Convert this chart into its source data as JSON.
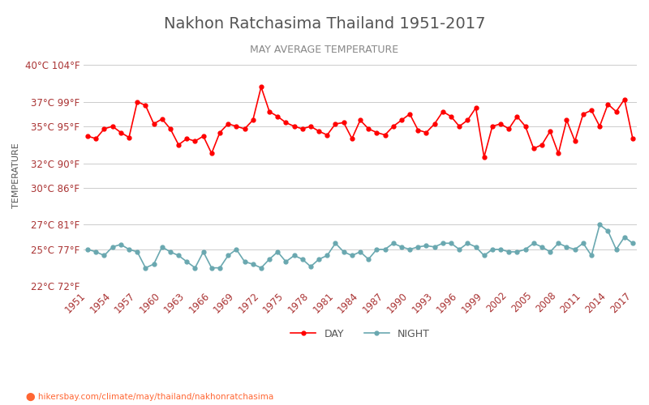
{
  "title": "Nakhon Ratchasima Thailand 1951-2017",
  "subtitle": "MAY AVERAGE TEMPERATURE",
  "ylabel": "TEMPERATURE",
  "url": "hikersbay.com/climate/may/thailand/nakhonratchasima",
  "years": [
    1951,
    1952,
    1953,
    1954,
    1955,
    1956,
    1957,
    1958,
    1959,
    1960,
    1961,
    1962,
    1963,
    1964,
    1965,
    1966,
    1967,
    1968,
    1969,
    1970,
    1971,
    1972,
    1973,
    1974,
    1975,
    1976,
    1977,
    1978,
    1979,
    1980,
    1981,
    1982,
    1983,
    1984,
    1985,
    1986,
    1987,
    1988,
    1989,
    1990,
    1991,
    1992,
    1993,
    1994,
    1995,
    1996,
    1997,
    1998,
    1999,
    2000,
    2001,
    2002,
    2003,
    2004,
    2005,
    2006,
    2007,
    2008,
    2009,
    2010,
    2011,
    2012,
    2013,
    2014,
    2015,
    2016,
    2017
  ],
  "day_temps": [
    34.2,
    34.0,
    34.8,
    35.0,
    34.5,
    34.1,
    37.0,
    36.7,
    35.2,
    35.6,
    34.8,
    33.5,
    34.0,
    33.8,
    34.2,
    32.8,
    34.5,
    35.2,
    35.0,
    34.8,
    35.5,
    38.2,
    36.2,
    35.8,
    35.3,
    35.0,
    34.8,
    35.0,
    34.6,
    34.3,
    35.2,
    35.3,
    34.0,
    35.5,
    34.8,
    34.5,
    34.3,
    35.0,
    35.5,
    36.0,
    34.7,
    34.5,
    35.2,
    36.2,
    35.8,
    35.0,
    35.5,
    36.5,
    32.5,
    35.0,
    35.2,
    34.8,
    35.8,
    35.0,
    33.2,
    33.5,
    34.6,
    32.8,
    35.5,
    33.8,
    36.0,
    36.3,
    35.0,
    36.8,
    36.2,
    37.2,
    34.0
  ],
  "night_temps": [
    25.0,
    24.8,
    24.5,
    25.2,
    25.4,
    25.0,
    24.8,
    23.5,
    23.8,
    25.2,
    24.8,
    24.5,
    24.0,
    23.5,
    24.8,
    23.5,
    23.5,
    24.5,
    25.0,
    24.0,
    23.8,
    23.5,
    24.2,
    24.8,
    24.0,
    24.5,
    24.2,
    23.6,
    24.2,
    24.5,
    25.5,
    24.8,
    24.5,
    24.8,
    24.2,
    25.0,
    25.0,
    25.5,
    25.2,
    25.0,
    25.2,
    25.3,
    25.2,
    25.5,
    25.5,
    25.0,
    25.5,
    25.2,
    24.5,
    25.0,
    25.0,
    24.8,
    24.8,
    25.0,
    25.5,
    25.2,
    24.8,
    25.5,
    25.2,
    25.0,
    25.5,
    24.5,
    27.0,
    26.5,
    25.0,
    26.0,
    25.5
  ],
  "day_color": "#ff0000",
  "night_color": "#6aa8b0",
  "background_color": "#ffffff",
  "grid_color": "#cccccc",
  "title_color": "#555555",
  "subtitle_color": "#888888",
  "ylabel_color": "#555555",
  "tick_color": "#aa3333",
  "ylim_min": 22,
  "ylim_max": 40,
  "yticks_c": [
    22,
    25,
    27,
    30,
    32,
    35,
    37,
    40
  ],
  "yticks_f": [
    72,
    77,
    81,
    86,
    90,
    95,
    99,
    104
  ],
  "xtick_step": 3
}
